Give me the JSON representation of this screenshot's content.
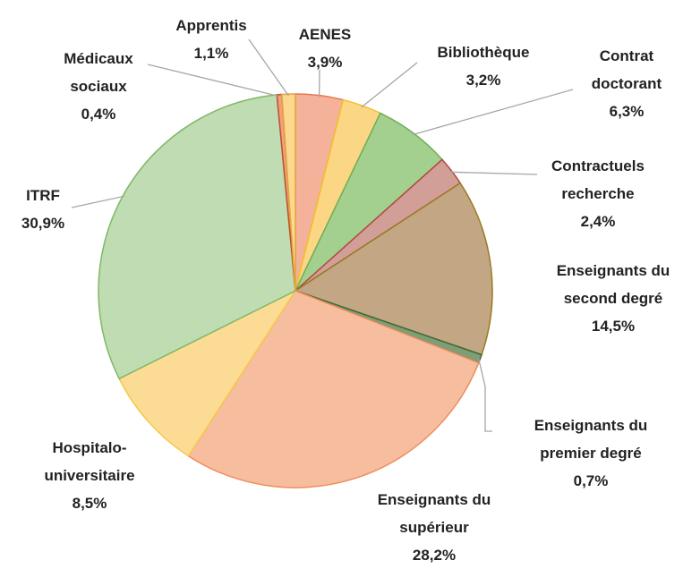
{
  "chart_data": {
    "type": "pie",
    "categories": [
      "AENES",
      "Bibliothèque",
      "Contrat doctorant",
      "Contractuels recherche",
      "Enseignants du second degré",
      "Enseignants du premier degré",
      "Enseignants du supérieur",
      "Hospitalo-universitaire",
      "ITRF",
      "Médicaux sociaux",
      "Apprentis"
    ],
    "values": [
      3.9,
      3.2,
      6.3,
      2.4,
      14.5,
      0.7,
      28.2,
      8.5,
      30.9,
      0.4,
      1.1
    ],
    "value_labels": [
      "3,9%",
      "3,2%",
      "6,3%",
      "2,4%",
      "14,5%",
      "0,7%",
      "28,2%",
      "8,5%",
      "30,9%",
      "0,4%",
      "1,1%"
    ],
    "colors": [
      "#f4b29a",
      "#fbd785",
      "#a3cf8f",
      "#d29e98",
      "#c3a684",
      "#7f9e78",
      "#f7bd9f",
      "#fcdc94",
      "#bfdcb2",
      "#f2a07e",
      "#fbd88e"
    ],
    "edge_colors": [
      "#e8774e",
      "#f5c02a",
      "#6fae55",
      "#b04a3c",
      "#9a7a1f",
      "#3d6b34",
      "#ef8e5d",
      "#f5c84a",
      "#7fb866",
      "#c0502a",
      "#e2a640"
    ]
  }
}
